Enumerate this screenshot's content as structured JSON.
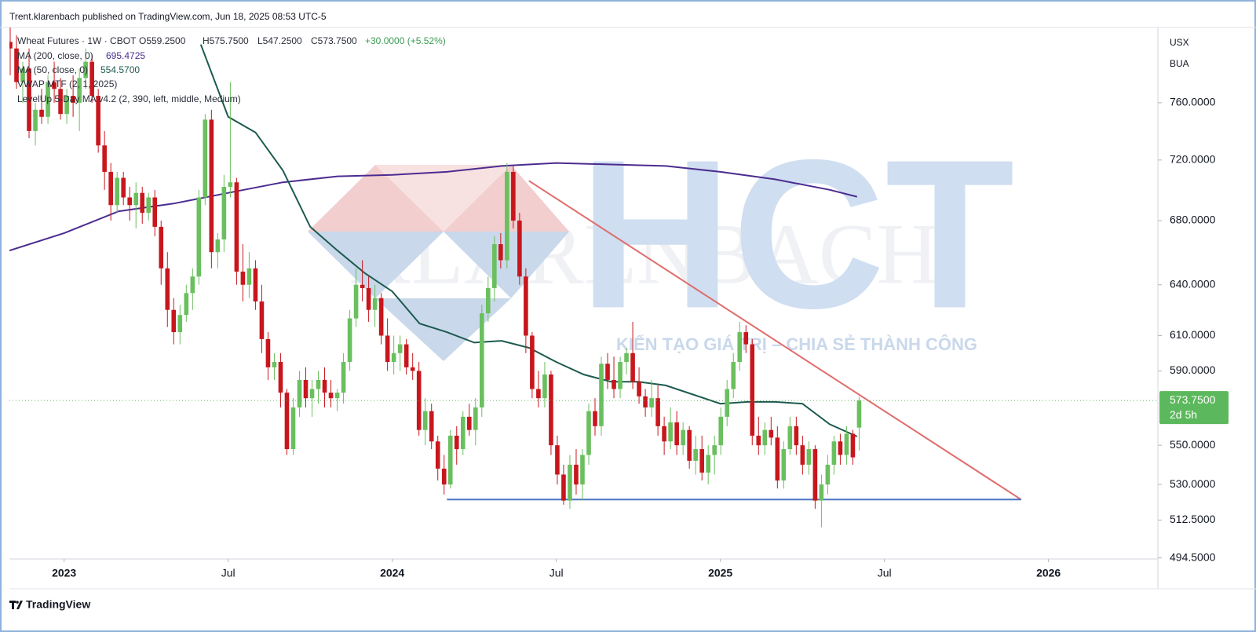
{
  "header": {
    "publisher": "Trent.klarenbach published on TradingView.com, Jun 18, 2025 08:53 UTC-5",
    "brand": "TradingView"
  },
  "watermark": {
    "logo": "HCT",
    "background": "KLARENBACH",
    "slogan": "KIẾN TẠO GIÁ TRỊ – CHIA SẺ THÀNH CÔNG"
  },
  "chart_data": {
    "type": "candlestick",
    "currency": "USX",
    "unit": "BUA",
    "legend": {
      "symbol": "Wheat Futures · 1W · CBOT",
      "ohlc": [
        "O559.2500",
        "H575.7500",
        "L547.2500",
        "C573.7500"
      ],
      "change": "+30.0000 (+5.52%)",
      "indicators": [
        "VWAP MTF (2, 1, 2025)",
        "LevelUp 5-Day MA v4.2 (2, 390, left, middle, Medium)"
      ]
    },
    "ylog": true,
    "ylim": [
      494,
      816
    ],
    "yticks": [
      {
        "value": 760,
        "label": "760.0000"
      },
      {
        "value": 720,
        "label": "720.0000"
      },
      {
        "value": 680,
        "label": "680.0000"
      },
      {
        "value": 640,
        "label": "640.0000"
      },
      {
        "value": 610,
        "label": "610.0000"
      },
      {
        "value": 590,
        "label": "590.0000"
      },
      {
        "value": 550,
        "label": "550.0000"
      },
      {
        "value": 530,
        "label": "530.0000"
      },
      {
        "value": 512.5,
        "label": "512.5000"
      },
      {
        "value": 494.5,
        "label": "494.5000"
      }
    ],
    "xlim": [
      "2022-11",
      "2026-05"
    ],
    "xticks": [
      {
        "value": "2023-01",
        "label": "2023"
      },
      {
        "value": "2023-07",
        "label": "Jul"
      },
      {
        "value": "2024-01",
        "label": "2024"
      },
      {
        "value": "2024-07",
        "label": "Jul"
      },
      {
        "value": "2025-01",
        "label": "2025"
      },
      {
        "value": "2025-07",
        "label": "Jul"
      },
      {
        "value": "2026-01",
        "label": "2026"
      }
    ],
    "series": [
      {
        "name": "Wheat Futures · 1W · CBOT",
        "type": "candlestick",
        "up_color": "#6abf5e",
        "down_color": "#c8161d",
        "ohlc": [
          [
            805,
            830,
            780,
            800
          ],
          [
            800,
            810,
            770,
            775
          ],
          [
            775,
            790,
            760,
            785
          ],
          [
            785,
            800,
            735,
            740
          ],
          [
            740,
            760,
            730,
            755
          ],
          [
            755,
            770,
            745,
            750
          ],
          [
            750,
            780,
            745,
            775
          ],
          [
            775,
            790,
            760,
            770
          ],
          [
            770,
            778,
            748,
            752
          ],
          [
            752,
            770,
            745,
            765
          ],
          [
            765,
            780,
            750,
            760
          ],
          [
            760,
            785,
            740,
            778
          ],
          [
            778,
            800,
            770,
            790
          ],
          [
            790,
            795,
            760,
            765
          ],
          [
            765,
            770,
            725,
            730
          ],
          [
            730,
            740,
            700,
            712
          ],
          [
            712,
            718,
            680,
            690
          ],
          [
            690,
            712,
            685,
            708
          ],
          [
            708,
            712,
            690,
            695
          ],
          [
            695,
            702,
            680,
            690
          ],
          [
            690,
            705,
            675,
            698
          ],
          [
            698,
            702,
            678,
            685
          ],
          [
            685,
            698,
            680,
            695
          ],
          [
            695,
            700,
            670,
            676
          ],
          [
            676,
            680,
            640,
            650
          ],
          [
            650,
            660,
            615,
            625
          ],
          [
            625,
            632,
            605,
            612
          ],
          [
            612,
            628,
            605,
            622
          ],
          [
            622,
            640,
            618,
            635
          ],
          [
            635,
            650,
            625,
            645
          ],
          [
            645,
            700,
            640,
            695
          ],
          [
            695,
            752,
            690,
            748
          ],
          [
            748,
            755,
            650,
            660
          ],
          [
            660,
            672,
            650,
            668
          ],
          [
            668,
            710,
            660,
            702
          ],
          [
            702,
            775,
            695,
            705
          ],
          [
            705,
            708,
            640,
            648
          ],
          [
            648,
            665,
            630,
            640
          ],
          [
            640,
            660,
            632,
            650
          ],
          [
            650,
            655,
            625,
            630
          ],
          [
            630,
            640,
            600,
            608
          ],
          [
            608,
            612,
            585,
            592
          ],
          [
            592,
            600,
            585,
            595
          ],
          [
            595,
            600,
            570,
            578
          ],
          [
            578,
            580,
            545,
            548
          ],
          [
            548,
            575,
            545,
            570
          ],
          [
            570,
            590,
            565,
            585
          ],
          [
            585,
            592,
            570,
            575
          ],
          [
            575,
            585,
            565,
            580
          ],
          [
            580,
            590,
            572,
            585
          ],
          [
            585,
            592,
            570,
            578
          ],
          [
            578,
            585,
            570,
            575
          ],
          [
            575,
            580,
            568,
            578
          ],
          [
            578,
            600,
            572,
            595
          ],
          [
            595,
            625,
            590,
            620
          ],
          [
            620,
            650,
            615,
            640
          ],
          [
            640,
            655,
            630,
            638
          ],
          [
            638,
            645,
            618,
            625
          ],
          [
            625,
            640,
            615,
            632
          ],
          [
            632,
            635,
            605,
            610
          ],
          [
            610,
            620,
            590,
            595
          ],
          [
            595,
            610,
            588,
            600
          ],
          [
            600,
            610,
            590,
            605
          ],
          [
            605,
            608,
            588,
            592
          ],
          [
            592,
            600,
            585,
            590
          ],
          [
            590,
            595,
            555,
            558
          ],
          [
            558,
            575,
            550,
            568
          ],
          [
            568,
            572,
            548,
            552
          ],
          [
            552,
            555,
            532,
            538
          ],
          [
            538,
            545,
            525,
            530
          ],
          [
            530,
            558,
            528,
            555
          ],
          [
            555,
            560,
            540,
            548
          ],
          [
            548,
            568,
            545,
            565
          ],
          [
            565,
            572,
            555,
            558
          ],
          [
            558,
            575,
            550,
            570
          ],
          [
            570,
            628,
            565,
            623
          ],
          [
            623,
            645,
            618,
            638
          ],
          [
            638,
            670,
            630,
            665
          ],
          [
            665,
            672,
            650,
            655
          ],
          [
            655,
            718,
            650,
            712
          ],
          [
            712,
            716,
            675,
            680
          ],
          [
            680,
            685,
            640,
            645
          ],
          [
            645,
            650,
            600,
            610
          ],
          [
            610,
            612,
            575,
            580
          ],
          [
            580,
            590,
            570,
            575
          ],
          [
            575,
            595,
            570,
            588
          ],
          [
            588,
            590,
            545,
            550
          ],
          [
            550,
            555,
            530,
            535
          ],
          [
            535,
            540,
            520,
            522
          ],
          [
            522,
            545,
            518,
            540
          ],
          [
            540,
            548,
            525,
            530
          ],
          [
            530,
            548,
            522,
            545
          ],
          [
            545,
            572,
            540,
            568
          ],
          [
            568,
            575,
            555,
            560
          ],
          [
            560,
            598,
            555,
            594
          ],
          [
            594,
            600,
            580,
            585
          ],
          [
            585,
            598,
            575,
            580
          ],
          [
            580,
            598,
            575,
            595
          ],
          [
            595,
            603,
            588,
            600
          ],
          [
            600,
            618,
            580,
            584
          ],
          [
            584,
            592,
            572,
            576
          ],
          [
            576,
            580,
            565,
            570
          ],
          [
            570,
            585,
            565,
            575
          ],
          [
            575,
            582,
            555,
            560
          ],
          [
            560,
            565,
            545,
            552
          ],
          [
            552,
            570,
            548,
            562
          ],
          [
            562,
            568,
            545,
            550
          ],
          [
            550,
            562,
            545,
            558
          ],
          [
            558,
            560,
            538,
            542
          ],
          [
            542,
            555,
            535,
            548
          ],
          [
            548,
            555,
            532,
            536
          ],
          [
            536,
            550,
            530,
            545
          ],
          [
            545,
            555,
            535,
            550
          ],
          [
            550,
            570,
            545,
            565
          ],
          [
            565,
            585,
            560,
            580
          ],
          [
            580,
            600,
            575,
            595
          ],
          [
            595,
            618,
            590,
            612
          ],
          [
            612,
            616,
            600,
            605
          ],
          [
            605,
            608,
            550,
            555
          ],
          [
            555,
            565,
            545,
            550
          ],
          [
            550,
            562,
            545,
            558
          ],
          [
            558,
            565,
            550,
            554
          ],
          [
            554,
            560,
            528,
            532
          ],
          [
            532,
            552,
            528,
            548
          ],
          [
            548,
            565,
            545,
            560
          ],
          [
            560,
            565,
            545,
            550
          ],
          [
            550,
            555,
            535,
            540
          ],
          [
            540,
            552,
            535,
            548
          ],
          [
            548,
            550,
            518,
            522
          ],
          [
            522,
            535,
            509,
            530
          ],
          [
            530,
            545,
            525,
            540
          ],
          [
            540,
            555,
            535,
            552
          ],
          [
            552,
            556,
            540,
            545
          ],
          [
            545,
            560,
            540,
            556
          ],
          [
            556,
            558,
            540,
            543.75
          ],
          [
            559.25,
            575.75,
            547.25,
            573.75
          ]
        ]
      }
    ],
    "lines": [
      {
        "name": "MA (200, close, 0)",
        "value_label": "695.4725",
        "color": "#4b2c8f",
        "x": [
          "2022-11",
          "2023-01",
          "2023-03",
          "2023-05",
          "2023-07",
          "2023-09",
          "2023-11",
          "2024-01",
          "2024-03",
          "2024-05",
          "2024-07",
          "2024-09",
          "2024-11",
          "2025-01",
          "2025-03",
          "2025-05",
          "2025-06"
        ],
        "values": [
          661,
          672,
          686,
          691,
          698,
          705,
          709,
          710,
          712,
          716,
          718,
          717,
          716,
          712,
          707,
          700,
          695.4725
        ]
      },
      {
        "name": "MA (50, close, 0)",
        "value_label": "554.5700",
        "color": "#1d5a4f",
        "x": [
          "2023-06",
          "2023-07",
          "2023-08",
          "2023-09",
          "2023-10",
          "2023-11",
          "2023-12",
          "2024-01",
          "2024-02",
          "2024-03",
          "2024-04",
          "2024-05",
          "2024-06",
          "2024-07",
          "2024-08",
          "2024-09",
          "2024-10",
          "2024-11",
          "2024-12",
          "2025-01",
          "2025-02",
          "2025-03",
          "2025-04",
          "2025-05",
          "2025-06"
        ],
        "values": [
          803,
          750,
          739,
          713,
          676,
          661,
          647,
          636,
          617,
          612,
          606,
          607,
          603,
          595,
          588,
          584,
          584,
          582,
          577,
          572,
          573,
          573,
          572,
          561,
          554.57
        ]
      }
    ],
    "trendlines": [
      {
        "color": "#e06c6c",
        "x": [
          "2024-06",
          "2025-12"
        ],
        "values": [
          706,
          522.5
        ]
      },
      {
        "color": "#4a72c4",
        "x": [
          "2024-03",
          "2025-12"
        ],
        "values": [
          522.5,
          522.5
        ]
      }
    ],
    "last_price": {
      "value": 573.75,
      "label": "573.7500",
      "countdown": "2d 5h",
      "color": "#5cb85c"
    }
  }
}
